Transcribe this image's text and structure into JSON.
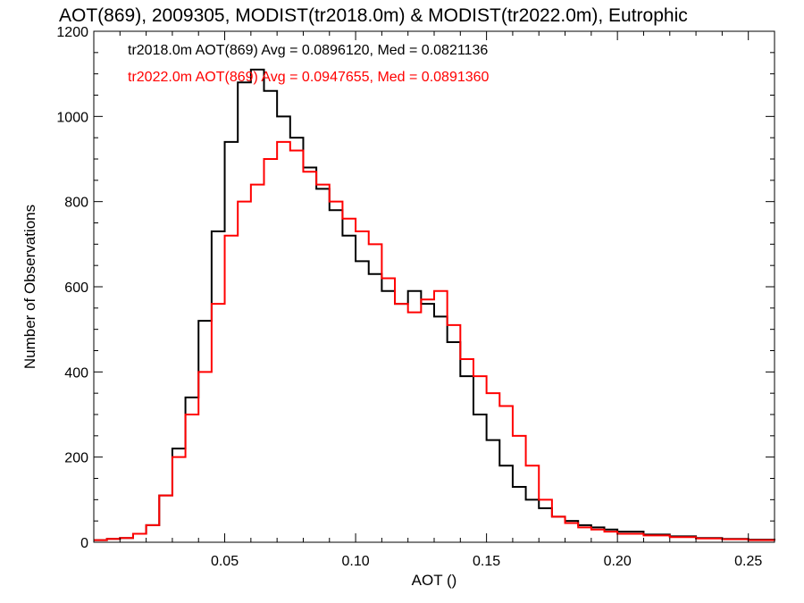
{
  "chart_data": {
    "type": "line",
    "step": true,
    "title": "AOT(869), 2009305, MODIST(tr2018.0m) & MODIST(tr2022.0m), Eutrophic",
    "xlabel": "AOT ()",
    "ylabel": "Number of Observations",
    "xlim": [
      0.0,
      0.26
    ],
    "ylim": [
      0,
      1200
    ],
    "x_ticks": [
      0.05,
      0.1,
      0.15,
      0.2,
      0.25
    ],
    "x_tick_labels": [
      "0.05",
      "0.10",
      "0.15",
      "0.20",
      "0.25"
    ],
    "y_ticks": [
      0,
      200,
      400,
      600,
      800,
      1000,
      1200
    ],
    "y_tick_labels": [
      "0",
      "200",
      "400",
      "600",
      "800",
      "1000",
      "1200"
    ],
    "legend_position": "top-left",
    "grid": false,
    "series": [
      {
        "key": "tr2018",
        "legend": "tr2018.0m AOT(869) Avg = 0.0896120, Med = 0.0821136",
        "color": "#000000",
        "points": [
          [
            0.0,
            5
          ],
          [
            0.005,
            8
          ],
          [
            0.01,
            10
          ],
          [
            0.015,
            20
          ],
          [
            0.02,
            40
          ],
          [
            0.025,
            110
          ],
          [
            0.03,
            220
          ],
          [
            0.035,
            340
          ],
          [
            0.04,
            520
          ],
          [
            0.045,
            730
          ],
          [
            0.05,
            940
          ],
          [
            0.055,
            1080
          ],
          [
            0.06,
            1110
          ],
          [
            0.065,
            1060
          ],
          [
            0.07,
            1000
          ],
          [
            0.075,
            950
          ],
          [
            0.08,
            880
          ],
          [
            0.085,
            830
          ],
          [
            0.09,
            780
          ],
          [
            0.095,
            720
          ],
          [
            0.1,
            660
          ],
          [
            0.105,
            630
          ],
          [
            0.11,
            590
          ],
          [
            0.115,
            560
          ],
          [
            0.12,
            590
          ],
          [
            0.125,
            560
          ],
          [
            0.13,
            530
          ],
          [
            0.135,
            470
          ],
          [
            0.14,
            390
          ],
          [
            0.145,
            300
          ],
          [
            0.15,
            240
          ],
          [
            0.155,
            180
          ],
          [
            0.16,
            130
          ],
          [
            0.165,
            100
          ],
          [
            0.17,
            80
          ],
          [
            0.175,
            60
          ],
          [
            0.18,
            50
          ],
          [
            0.185,
            40
          ],
          [
            0.19,
            35
          ],
          [
            0.195,
            30
          ],
          [
            0.2,
            25
          ],
          [
            0.21,
            18
          ],
          [
            0.22,
            14
          ],
          [
            0.23,
            10
          ],
          [
            0.24,
            8
          ],
          [
            0.25,
            6
          ],
          [
            0.26,
            4
          ]
        ]
      },
      {
        "key": "tr2022",
        "legend": "tr2022.0m AOT(869) Avg = 0.0947655, Med = 0.0891360",
        "color": "#ff0000",
        "points": [
          [
            0.0,
            5
          ],
          [
            0.005,
            8
          ],
          [
            0.01,
            10
          ],
          [
            0.015,
            20
          ],
          [
            0.02,
            40
          ],
          [
            0.025,
            110
          ],
          [
            0.03,
            200
          ],
          [
            0.035,
            300
          ],
          [
            0.04,
            400
          ],
          [
            0.045,
            560
          ],
          [
            0.05,
            720
          ],
          [
            0.055,
            800
          ],
          [
            0.06,
            840
          ],
          [
            0.065,
            900
          ],
          [
            0.07,
            940
          ],
          [
            0.075,
            920
          ],
          [
            0.08,
            870
          ],
          [
            0.085,
            840
          ],
          [
            0.09,
            800
          ],
          [
            0.095,
            760
          ],
          [
            0.1,
            730
          ],
          [
            0.105,
            700
          ],
          [
            0.11,
            620
          ],
          [
            0.115,
            560
          ],
          [
            0.12,
            540
          ],
          [
            0.125,
            570
          ],
          [
            0.13,
            590
          ],
          [
            0.135,
            510
          ],
          [
            0.14,
            430
          ],
          [
            0.145,
            390
          ],
          [
            0.15,
            350
          ],
          [
            0.155,
            320
          ],
          [
            0.16,
            250
          ],
          [
            0.165,
            180
          ],
          [
            0.17,
            100
          ],
          [
            0.175,
            60
          ],
          [
            0.18,
            45
          ],
          [
            0.185,
            35
          ],
          [
            0.19,
            30
          ],
          [
            0.195,
            25
          ],
          [
            0.2,
            20
          ],
          [
            0.21,
            16
          ],
          [
            0.22,
            12
          ],
          [
            0.23,
            9
          ],
          [
            0.24,
            7
          ],
          [
            0.25,
            5
          ],
          [
            0.26,
            4
          ]
        ]
      }
    ]
  }
}
